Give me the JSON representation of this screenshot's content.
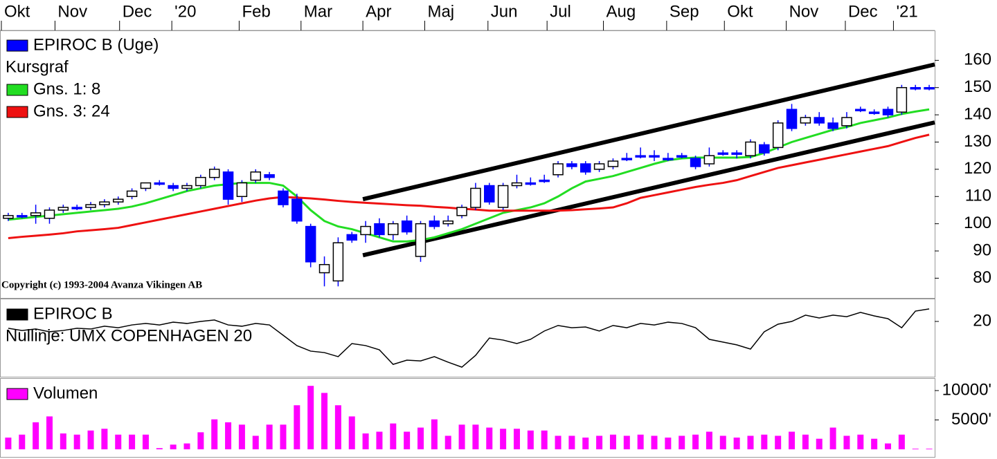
{
  "chart_data": [
    {
      "type": "candlestick",
      "xlim": [
        -0.6,
        67.4
      ],
      "xticks": [
        {
          "value": -0.5,
          "label": "Okt"
        },
        {
          "value": 3.4,
          "label": "Nov"
        },
        {
          "value": 8.1,
          "label": "Dec"
        },
        {
          "value": 11.9,
          "label": "'20"
        },
        {
          "value": 16.8,
          "label": "Feb"
        },
        {
          "value": 21.3,
          "label": "Mar"
        },
        {
          "value": 25.8,
          "label": "Apr"
        },
        {
          "value": 30.3,
          "label": "Maj"
        },
        {
          "value": 34.9,
          "label": "Jun"
        },
        {
          "value": 39.2,
          "label": "Jul"
        },
        {
          "value": 43.3,
          "label": "Aug"
        },
        {
          "value": 47.9,
          "label": "Sep"
        },
        {
          "value": 52.1,
          "label": "Okt"
        },
        {
          "value": 56.6,
          "label": "Nov"
        },
        {
          "value": 60.9,
          "label": "Dec"
        },
        {
          "value": 64.4,
          "label": "'21"
        }
      ],
      "ylim": [
        73,
        171
      ],
      "yticks": [
        80,
        90,
        100,
        110,
        120,
        130,
        140,
        150,
        160
      ],
      "subtitle": "Kursgraf",
      "annotation": "Copyright (c) 1993-2004 Avanza Vikingen AB",
      "series": [
        {
          "name": "EPIROC B (Uge)",
          "color": "#0000ff",
          "open": [
            102,
            103,
            103,
            102,
            105,
            106,
            106,
            107,
            108,
            110,
            113,
            115,
            114,
            113,
            114,
            117,
            119,
            110,
            116,
            118,
            112,
            109,
            99,
            82,
            79,
            96,
            96,
            100,
            96,
            101,
            88,
            101,
            100,
            103,
            106,
            114,
            106,
            114,
            115,
            116,
            118,
            122,
            122,
            120,
            121,
            124,
            125,
            125,
            124,
            125,
            124,
            122,
            126,
            126,
            125,
            129,
            128,
            142,
            137,
            139,
            137,
            136,
            142,
            141,
            142,
            141,
            150,
            150
          ],
          "high": [
            104,
            104,
            107,
            106,
            107,
            107,
            108,
            109,
            110,
            113,
            115,
            116,
            115,
            115,
            118,
            121,
            120,
            116,
            120,
            119,
            113,
            111,
            100,
            88,
            95,
            97,
            101,
            102,
            101,
            103,
            101,
            103,
            103,
            107,
            115,
            115,
            115,
            118,
            117,
            118,
            123,
            123,
            123,
            123,
            124,
            126,
            128,
            127,
            126,
            126,
            125,
            128,
            127,
            127,
            131,
            130,
            138,
            144,
            140,
            141,
            139,
            141,
            143,
            142,
            143,
            151,
            151,
            151
          ],
          "low": [
            101,
            102,
            100,
            100,
            104,
            105,
            105,
            106,
            107,
            109,
            112,
            114,
            112,
            112,
            113,
            116,
            107,
            108,
            115,
            116,
            106,
            100,
            84,
            77,
            77,
            93,
            93,
            95,
            94,
            96,
            86,
            98,
            99,
            102,
            105,
            107,
            105,
            113,
            114,
            115,
            117,
            120,
            118,
            119,
            120,
            123,
            124,
            123,
            123,
            124,
            120,
            121,
            125,
            124,
            124,
            125,
            127,
            134,
            136,
            136,
            134,
            135,
            141,
            140,
            139,
            140,
            149,
            149
          ],
          "close": [
            103,
            103,
            104,
            105,
            106,
            106,
            107,
            108,
            109,
            112,
            115,
            115,
            113,
            114,
            117,
            120,
            109,
            115,
            119,
            117,
            107,
            101,
            86,
            85,
            93,
            94,
            99,
            96,
            100,
            97,
            100,
            99,
            101,
            106,
            113,
            108,
            114,
            115,
            115,
            116,
            122,
            121,
            119,
            122,
            123,
            124,
            125,
            125,
            124,
            125,
            121,
            125,
            126,
            126,
            130,
            126,
            137,
            135,
            139,
            137,
            135,
            139,
            142,
            141,
            140,
            150,
            150,
            150
          ]
        },
        {
          "name": "Gns. 1: 8",
          "color": "#22dd22",
          "values": [
            101.5,
            102,
            102.5,
            103,
            103.5,
            104,
            104.5,
            105,
            105.5,
            106.3,
            107.5,
            109,
            110.5,
            112,
            113,
            114,
            114.5,
            115,
            115,
            115,
            114,
            110,
            105,
            101,
            99,
            98,
            96.5,
            95,
            93.5,
            93.5,
            94,
            95,
            96.5,
            98,
            100,
            102,
            104,
            105,
            106,
            107.5,
            110,
            113,
            115.5,
            116.5,
            117.5,
            119,
            120.5,
            122,
            123.3,
            124,
            124.3,
            124.3,
            124.3,
            124.3,
            124.5,
            126,
            128,
            130,
            131.5,
            133,
            134.5,
            135.5,
            137,
            138,
            139,
            140.3,
            141.2,
            142
          ]
        },
        {
          "name": "Gns. 3: 24",
          "color": "#ee1111",
          "values": [
            94.7,
            95.2,
            95.6,
            96,
            96.5,
            97.2,
            97.6,
            98,
            98.5,
            99.5,
            100.5,
            101.5,
            102.5,
            103.5,
            104.5,
            105.5,
            106.5,
            107.5,
            108.5,
            109.3,
            109.8,
            109.6,
            109.3,
            108.9,
            108.4,
            108,
            107.7,
            107.4,
            107.1,
            106.8,
            106.6,
            106.2,
            105.9,
            105.5,
            105.2,
            104.8,
            104.8,
            104.8,
            104.8,
            104.8,
            104.8,
            105,
            105.3,
            105.6,
            106,
            107.5,
            109.5,
            110.5,
            111.5,
            112.5,
            113.5,
            114.3,
            115,
            116,
            117.5,
            119,
            120.5,
            121.5,
            122.5,
            123.5,
            124.5,
            125.5,
            126.5,
            127.5,
            128.5,
            130,
            131.5,
            132.7
          ]
        }
      ],
      "trendlines": [
        {
          "color": "#000000",
          "x": [
            25.8,
            67.4
          ],
          "values": [
            109,
            158.5
          ]
        },
        {
          "color": "#000000",
          "x": [
            25.8,
            67.4
          ],
          "values": [
            88.4,
            137.2
          ]
        }
      ]
    },
    {
      "type": "line",
      "ylim": [
        -10,
        32
      ],
      "yticks": [
        20
      ],
      "subtitle": "Nullinje: UMX COPENHAGEN 20",
      "series": [
        {
          "name": "EPIROC B",
          "color": "#000000",
          "values": [
            16.3,
            15.1,
            15.9,
            14.4,
            15.1,
            16.3,
            15.9,
            17.4,
            16.6,
            18.1,
            18.9,
            18.1,
            19.6,
            18.9,
            20,
            20.8,
            18.1,
            17.4,
            18.9,
            18.1,
            12.5,
            6.9,
            3.9,
            3.1,
            0.9,
            8,
            6.9,
            4.6,
            -3.3,
            -1,
            -1.4,
            0.9,
            -2.1,
            -4.8,
            1.6,
            11,
            9.9,
            8,
            10.3,
            14.8,
            17.8,
            16.6,
            17,
            14.8,
            17.8,
            16.6,
            18.9,
            18.1,
            19.6,
            18.9,
            16.6,
            10.3,
            8.8,
            7.3,
            5,
            14.4,
            18.5,
            20,
            23.4,
            21.9,
            23.4,
            22.6,
            24.9,
            23,
            21.5,
            16.6,
            25.6,
            26.8
          ]
        }
      ]
    },
    {
      "type": "bar",
      "ylim": [
        0,
        12000
      ],
      "yticks": [
        {
          "value": 10000,
          "label": "10000'"
        },
        {
          "value": 5000,
          "label": "5000'"
        }
      ],
      "series": [
        {
          "name": "Volumen",
          "color": "#ff00ff",
          "values": [
            2000,
            2500,
            4600,
            5600,
            2700,
            2500,
            3200,
            3500,
            2500,
            2500,
            2500,
            200,
            800,
            1000,
            2900,
            5100,
            4600,
            4200,
            2300,
            4200,
            4200,
            7500,
            10800,
            9600,
            7500,
            5600,
            2700,
            3000,
            4400,
            3000,
            3700,
            5100,
            2300,
            4200,
            4200,
            3700,
            3500,
            3500,
            3200,
            3200,
            2300,
            2300,
            2000,
            2300,
            2500,
            2300,
            2500,
            2300,
            2000,
            2300,
            2500,
            3000,
            2300,
            2000,
            2300,
            2500,
            2300,
            3000,
            2500,
            1800,
            3700,
            2300,
            2500,
            1800,
            1000,
            2500,
            100,
            100
          ]
        }
      ]
    }
  ]
}
